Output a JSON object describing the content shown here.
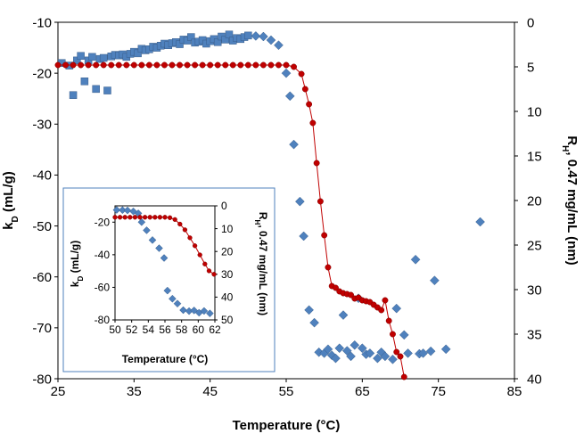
{
  "chart_data": [
    {
      "type": "scatter",
      "xlabel": "Temperature (°C)",
      "ylabel": "kD (mL/g)",
      "y2label": "RH, 0.47 mg/mL (nm)",
      "xlim": [
        25,
        85
      ],
      "ylim": [
        -80,
        -10
      ],
      "y2lim": [
        40,
        0
      ],
      "y2_inverted": true,
      "x_ticks": [
        "25",
        "35",
        "45",
        "55",
        "65",
        "75",
        "85"
      ],
      "y_ticks": [
        "-10",
        "-20",
        "-30",
        "-40",
        "-50",
        "-60",
        "-70",
        "-80"
      ],
      "y2_ticks": [
        "0",
        "5",
        "10",
        "15",
        "20",
        "25",
        "30",
        "35",
        "40"
      ],
      "colors": {
        "kd_squares": "#4f81bd",
        "kd_diamonds": "#4f81bd",
        "rh": "#c00000",
        "rh_line": "#c00000"
      },
      "series": [
        {
          "marker": "square",
          "axis": "left",
          "points": [
            [
              25.5,
              -18
            ],
            [
              26.5,
              -18.5
            ],
            [
              27,
              -24.3
            ],
            [
              27.5,
              -17.5
            ],
            [
              28,
              -16.6
            ],
            [
              28.5,
              -21.6
            ],
            [
              29,
              -17.5
            ],
            [
              29.5,
              -16.8
            ],
            [
              30,
              -23.1
            ],
            [
              30.5,
              -17.2
            ],
            [
              31,
              -17
            ],
            [
              31.5,
              -23.4
            ],
            [
              32,
              -16.7
            ],
            [
              32.5,
              -16.4
            ],
            [
              33,
              -16.5
            ],
            [
              33.5,
              -16.3
            ],
            [
              34,
              -16.8
            ],
            [
              34.5,
              -16.2
            ],
            [
              35,
              -15.8
            ],
            [
              35.5,
              -16.1
            ],
            [
              36,
              -15.2
            ],
            [
              36.5,
              -15.5
            ],
            [
              37,
              -15.3
            ],
            [
              37.5,
              -14.8
            ],
            [
              38,
              -15
            ],
            [
              38.5,
              -14.6
            ],
            [
              39,
              -14.2
            ],
            [
              39.5,
              -14.5
            ],
            [
              40,
              -14.1
            ],
            [
              40.5,
              -13.9
            ],
            [
              41,
              -14.3
            ],
            [
              41.5,
              -13.4
            ],
            [
              42,
              -13.6
            ],
            [
              42.5,
              -12.9
            ],
            [
              43,
              -14
            ],
            [
              43.5,
              -13.8
            ],
            [
              44,
              -13.5
            ],
            [
              44.5,
              -14.2
            ],
            [
              45,
              -13.7
            ],
            [
              45.5,
              -13.3
            ],
            [
              46,
              -13.9
            ],
            [
              46.5,
              -12.8
            ],
            [
              47,
              -13.4
            ],
            [
              47.5,
              -12.4
            ],
            [
              48,
              -13.6
            ],
            [
              48.5,
              -13.1
            ],
            [
              49,
              -13.3
            ],
            [
              49.5,
              -12.9
            ],
            [
              50,
              -12.6
            ]
          ]
        },
        {
          "marker": "diamond",
          "axis": "left",
          "points": [
            [
              51,
              -12.7
            ],
            [
              52,
              -12.8
            ],
            [
              53,
              -13.5
            ],
            [
              54,
              -14.5
            ],
            [
              55,
              -20
            ],
            [
              55.5,
              -24.5
            ],
            [
              56,
              -34
            ],
            [
              56.8,
              -45.2
            ],
            [
              57.3,
              -52
            ],
            [
              58,
              -66.5
            ],
            [
              58.7,
              -69
            ],
            [
              59.3,
              -74.8
            ],
            [
              60,
              -75
            ],
            [
              60.5,
              -74.2
            ],
            [
              61,
              -75.4
            ],
            [
              61.5,
              -76
            ],
            [
              62,
              -74
            ],
            [
              62.5,
              -67.5
            ],
            [
              63,
              -74.5
            ],
            [
              63.5,
              -75.6
            ],
            [
              64,
              -73.4
            ],
            [
              64.5,
              -64.2
            ],
            [
              65,
              -74
            ],
            [
              65.5,
              -75.2
            ],
            [
              66,
              -75
            ],
            [
              67,
              -76
            ],
            [
              67.5,
              -74.8
            ],
            [
              68,
              -75.6
            ],
            [
              69,
              -76.2
            ],
            [
              69.5,
              -66.2
            ],
            [
              70.5,
              -71.4
            ],
            [
              71,
              -75
            ],
            [
              72,
              -56.6
            ],
            [
              72.5,
              -75.1
            ],
            [
              73,
              -75
            ],
            [
              74,
              -74.6
            ],
            [
              74.5,
              -60.7
            ],
            [
              76,
              -74.2
            ],
            [
              80.5,
              -49.2
            ]
          ]
        },
        {
          "marker": "circle",
          "axis": "right",
          "line": true,
          "points": [
            [
              25,
              4.8
            ],
            [
              26,
              4.8
            ],
            [
              27,
              4.8
            ],
            [
              28,
              4.8
            ],
            [
              29,
              4.8
            ],
            [
              30,
              4.8
            ],
            [
              31,
              4.8
            ],
            [
              32,
              4.8
            ],
            [
              33,
              4.8
            ],
            [
              34,
              4.8
            ],
            [
              35,
              4.8
            ],
            [
              36,
              4.8
            ],
            [
              37,
              4.8
            ],
            [
              38,
              4.8
            ],
            [
              39,
              4.8
            ],
            [
              40,
              4.8
            ],
            [
              41,
              4.8
            ],
            [
              42,
              4.8
            ],
            [
              43,
              4.8
            ],
            [
              44,
              4.8
            ],
            [
              45,
              4.8
            ],
            [
              46,
              4.8
            ],
            [
              47,
              4.8
            ],
            [
              48,
              4.8
            ],
            [
              49,
              4.8
            ],
            [
              50,
              4.8
            ],
            [
              51,
              4.8
            ],
            [
              52,
              4.8
            ],
            [
              53,
              4.8
            ],
            [
              54,
              4.8
            ],
            [
              55,
              4.8
            ],
            [
              56,
              5
            ],
            [
              57,
              5.8
            ],
            [
              57.5,
              7.5
            ],
            [
              58,
              9.2
            ],
            [
              58.5,
              11.3
            ],
            [
              59,
              15.8
            ],
            [
              59.5,
              20.1
            ],
            [
              60,
              23.9
            ],
            [
              60.5,
              27.5
            ],
            [
              61,
              29.6
            ],
            [
              61.5,
              29.8
            ],
            [
              62,
              30.2
            ],
            [
              62.5,
              30.4
            ],
            [
              63,
              30.5
            ],
            [
              63.5,
              30.6
            ],
            [
              64,
              31
            ],
            [
              64.5,
              30.9
            ],
            [
              65,
              31.2
            ],
            [
              65.5,
              31.3
            ],
            [
              66,
              31.4
            ],
            [
              66.5,
              31.7
            ],
            [
              67,
              32
            ],
            [
              67.5,
              32.3
            ],
            [
              68,
              31.2
            ],
            [
              68.5,
              33.5
            ],
            [
              69,
              35
            ],
            [
              69.5,
              37
            ],
            [
              70,
              37.5
            ],
            [
              70.5,
              39.8
            ]
          ]
        }
      ]
    },
    {
      "type": "scatter",
      "inset": true,
      "xlabel": "Temperature (°C)",
      "ylabel": "kD (mL/g)",
      "y2label": "RH, 0.47 mg/mL (nm)",
      "xlim": [
        50,
        62
      ],
      "ylim": [
        -80,
        -10
      ],
      "y2lim": [
        50,
        0
      ],
      "y2_inverted": true,
      "x_ticks": [
        "50",
        "52",
        "54",
        "56",
        "58",
        "60",
        "62"
      ],
      "y_ticks": [
        "-20",
        "-40",
        "-60",
        "-80"
      ],
      "y2_ticks": [
        "0",
        "10",
        "20",
        "30",
        "40",
        "50"
      ],
      "series": [
        {
          "marker": "diamond",
          "axis": "left",
          "points": [
            [
              50.2,
              -12.5
            ],
            [
              50.9,
              -12.6
            ],
            [
              51.5,
              -12.8
            ],
            [
              52.2,
              -13.4
            ],
            [
              52.8,
              -14.6
            ],
            [
              53.2,
              -20
            ],
            [
              53.8,
              -25
            ],
            [
              54.5,
              -31
            ],
            [
              55.3,
              -36
            ],
            [
              55.9,
              -42
            ],
            [
              56.3,
              -62
            ],
            [
              56.9,
              -67
            ],
            [
              57.5,
              -70
            ],
            [
              58.2,
              -74
            ],
            [
              58.9,
              -74.6
            ],
            [
              59.5,
              -74.2
            ],
            [
              60.1,
              -75.6
            ],
            [
              60.7,
              -74.5
            ],
            [
              61.4,
              -76
            ]
          ]
        },
        {
          "marker": "circle",
          "axis": "right",
          "line": true,
          "points": [
            [
              50,
              5
            ],
            [
              50.6,
              5
            ],
            [
              51.2,
              5
            ],
            [
              51.8,
              5
            ],
            [
              52.4,
              5
            ],
            [
              53,
              5
            ],
            [
              53.6,
              5
            ],
            [
              54.2,
              5
            ],
            [
              54.8,
              5
            ],
            [
              55.4,
              5
            ],
            [
              56,
              5
            ],
            [
              56.6,
              5.2
            ],
            [
              57.2,
              6
            ],
            [
              57.8,
              8
            ],
            [
              58.4,
              10.5
            ],
            [
              59,
              14
            ],
            [
              59.6,
              17.5
            ],
            [
              60.2,
              21.5
            ],
            [
              60.8,
              25.5
            ],
            [
              61.3,
              28.5
            ],
            [
              61.9,
              30
            ]
          ]
        }
      ]
    }
  ]
}
